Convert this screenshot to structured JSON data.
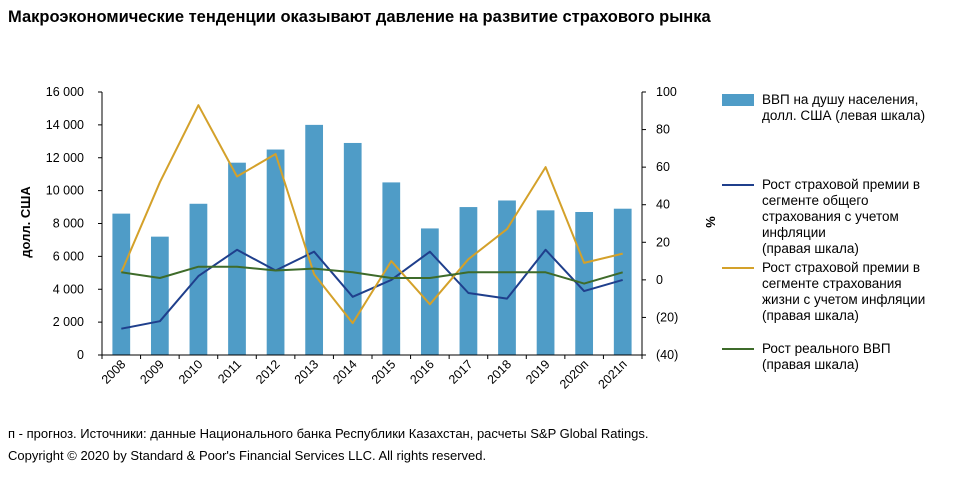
{
  "title": "Макроэкономические тенденции оказывают давление на развитие страхового рынка",
  "footnote": "п - прогноз. Источники: данные Национального банка Республики Казахстан, расчеты  S&P Global Ratings.",
  "copyright": "Copyright © 2020 by Standard & Poor's Financial Services LLC. All rights reserved.",
  "colors": {
    "bars": "#4F9CC7",
    "general_premium": "#1F3F8C",
    "life_premium": "#D4A12A",
    "real_gdp": "#3E6B2A"
  },
  "chart_data": {
    "type": "bar",
    "categories": [
      "2008",
      "2009",
      "2010",
      "2011",
      "2012",
      "2013",
      "2014",
      "2015",
      "2016",
      "2017",
      "2018",
      "2019",
      "2020п",
      "2021п"
    ],
    "ylabel": "долл. США",
    "y2label": "%",
    "ylim": [
      0,
      16000
    ],
    "y2lim": [
      -40,
      100
    ],
    "yticks": [
      "0",
      "2 000",
      "4 000",
      "6 000",
      "8 000",
      "10 000",
      "12 000",
      "14 000",
      "16 000"
    ],
    "y2ticks": [
      "(40)",
      "(20)",
      "0",
      "20",
      "40",
      "60",
      "80",
      "100"
    ],
    "legend_position": "right",
    "grid": false,
    "series": [
      {
        "name": "ВВП на душу населения,\nдолл. США (левая шкала)",
        "type": "bar",
        "axis": "left",
        "values": [
          8600,
          7200,
          9200,
          11700,
          12500,
          14000,
          12900,
          10500,
          7700,
          9000,
          9400,
          8800,
          8700,
          8900
        ]
      },
      {
        "name": "Рост страховой премии в\nсегменте общего\nстрахования с учетом\nинфляции\n(правая шкала)",
        "type": "line",
        "axis": "right",
        "values": [
          -26,
          -22,
          2,
          16,
          5,
          15,
          -9,
          0,
          15,
          -7,
          -10,
          16,
          -6,
          0
        ]
      },
      {
        "name": "Рост страховой премии в\nсегменте страхования\nжизни с учетом инфляции\n(правая шкала)",
        "type": "line",
        "axis": "right",
        "values": [
          4,
          52,
          93,
          55,
          67,
          3,
          -23,
          10,
          -13,
          11,
          27,
          60,
          9,
          14
        ]
      },
      {
        "name": "Рост реального ВВП\n(правая шкала)",
        "type": "line",
        "axis": "right",
        "values": [
          4,
          1,
          7,
          7,
          5,
          6,
          4,
          1,
          1,
          4,
          4,
          4,
          -2,
          4
        ]
      }
    ]
  }
}
